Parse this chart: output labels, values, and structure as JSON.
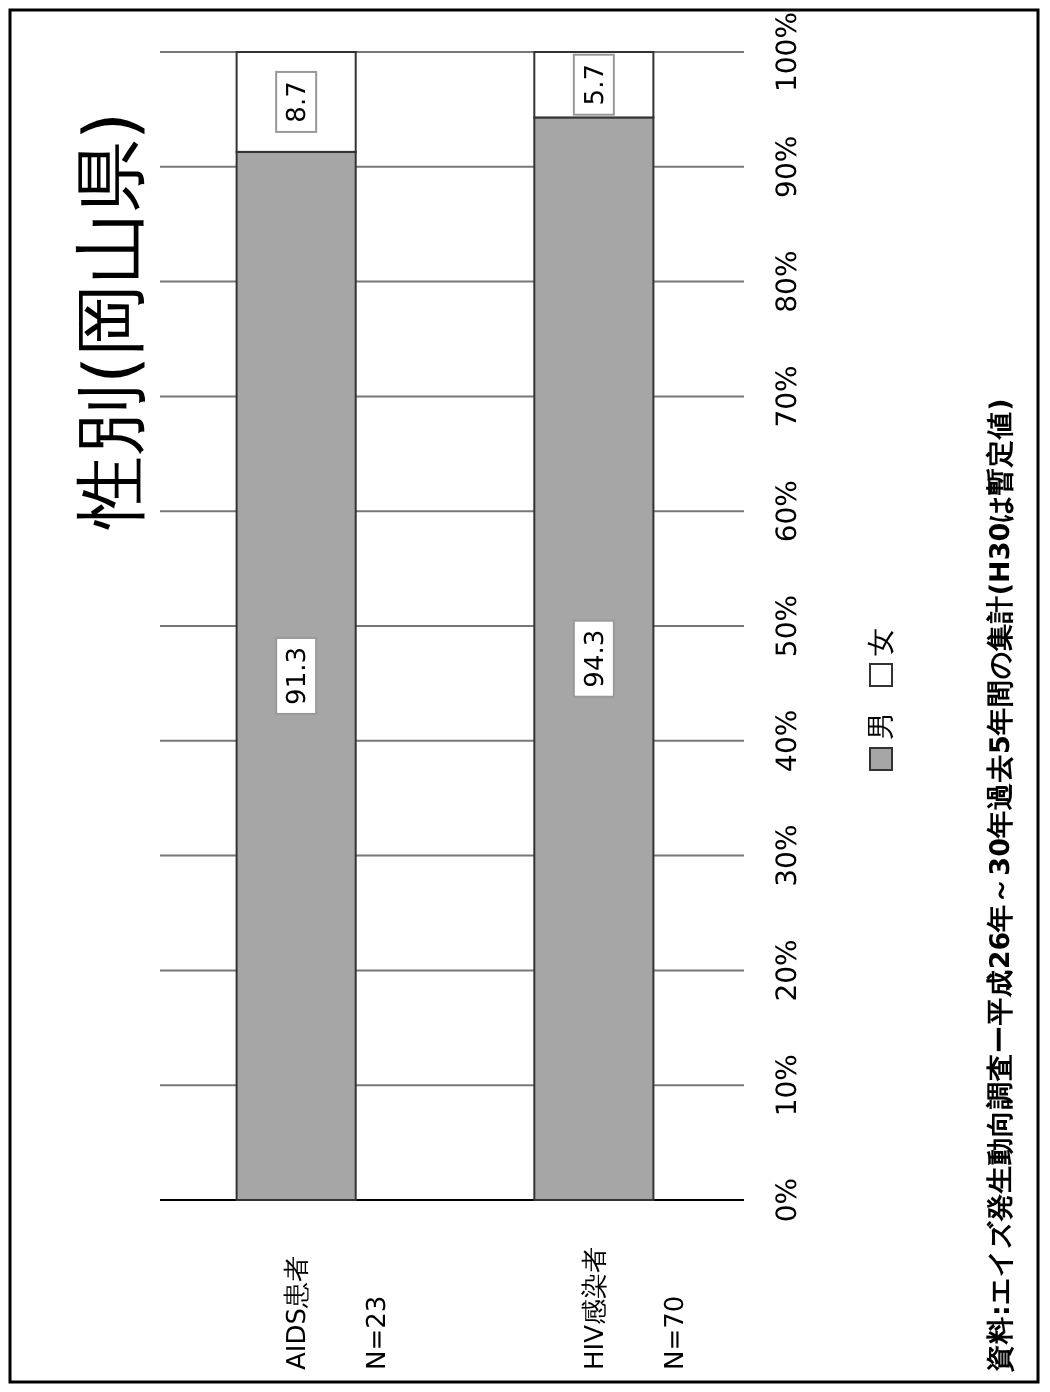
{
  "chart_data": {
    "type": "bar",
    "stacked": true,
    "title": "性別(岡山県)",
    "categories": [
      "AIDS患者 N=23",
      "HIV感染者 N=70"
    ],
    "series": [
      {
        "name": "男",
        "color": "#a6a6a6",
        "values": [
          91.3,
          94.3
        ]
      },
      {
        "name": "女",
        "color": "#ffffff",
        "values": [
          8.7,
          5.7
        ]
      }
    ],
    "ylim": [
      0,
      100
    ],
    "yticks": [
      {
        "value": 0,
        "label": "0%"
      },
      {
        "value": 10,
        "label": "10%"
      },
      {
        "value": 20,
        "label": "20%"
      },
      {
        "value": 30,
        "label": "30%"
      },
      {
        "value": 40,
        "label": "40%"
      },
      {
        "value": 50,
        "label": "50%"
      },
      {
        "value": 60,
        "label": "60%"
      },
      {
        "value": 70,
        "label": "70%"
      },
      {
        "value": 80,
        "label": "80%"
      },
      {
        "value": 90,
        "label": "90%"
      },
      {
        "value": 100,
        "label": "100%"
      }
    ],
    "grid": true,
    "data_labels": true,
    "legend": "right",
    "annotations": [
      "資料:エイズ発生動向調査ー平成26年～30年過去5年間の集計(H30は暫定値)"
    ]
  }
}
